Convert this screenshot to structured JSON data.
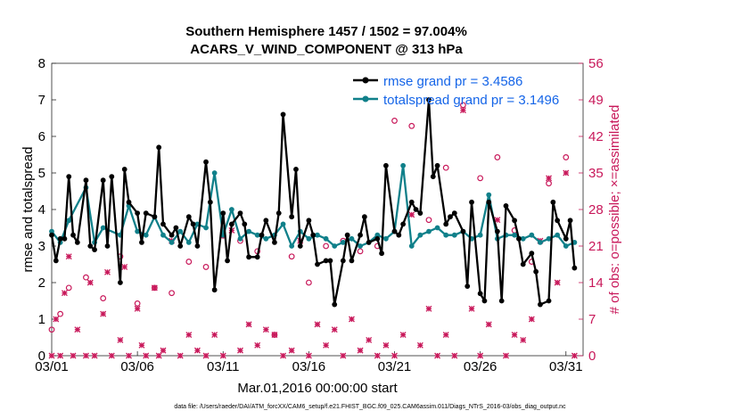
{
  "chart_data": {
    "type": "line",
    "title_line1": "Southern Hemisphere 1457 / 1502 = 97.004%",
    "title_line2": "ACARS_V_WIND_COMPONENT @ 313 hPa",
    "ylabel": "rmse and totalspread",
    "ylabel_right": "# of obs: o=possible; ×=assimilated",
    "xlabel": "Mar.01,2016 00:00:00 start",
    "footnote": "data file: /Users/raeder/DAI/ATM_forcXX/CAM6_setup/f.e21.FHIST_BGC.f09_025.CAM6assim.011/Diags_NTrS_2016-03/obs_diag_output.nc",
    "xlim": [
      1,
      32
    ],
    "ylim": [
      0,
      8
    ],
    "ylim_right": [
      0,
      56
    ],
    "x_ticks": [
      1,
      6,
      11,
      16,
      21,
      26,
      31
    ],
    "x_tick_labels": [
      "03/01",
      "03/06",
      "03/11",
      "03/16",
      "03/21",
      "03/26",
      "03/31"
    ],
    "y_ticks": [
      0,
      1,
      2,
      3,
      4,
      5,
      6,
      7,
      8
    ],
    "y_tick_labels": [
      "0",
      "1",
      "2",
      "3",
      "4",
      "5",
      "6",
      "7",
      "8"
    ],
    "y_right_ticks": [
      0,
      7,
      14,
      21,
      28,
      35,
      42,
      49,
      56
    ],
    "y_right_tick_labels": [
      "0",
      "7",
      "14",
      "21",
      "28",
      "35",
      "42",
      "49",
      "56"
    ],
    "legend_position": "top-right",
    "series": [
      {
        "name": "rmse grand pr = 3.4586",
        "color": "#000000",
        "x": [
          1.0,
          1.25,
          1.5,
          1.75,
          2.0,
          2.25,
          2.5,
          3.0,
          3.25,
          3.5,
          4.0,
          4.25,
          4.5,
          5.0,
          5.25,
          5.5,
          6.0,
          6.25,
          6.5,
          7.0,
          7.25,
          7.5,
          8.0,
          8.25,
          8.5,
          9.0,
          9.25,
          9.5,
          10.0,
          10.25,
          10.5,
          11.0,
          11.25,
          11.5,
          12.0,
          12.25,
          12.5,
          13.0,
          13.25,
          13.5,
          14.0,
          14.25,
          14.5,
          15.0,
          15.25,
          15.5,
          16.0,
          16.25,
          16.5,
          17.0,
          17.25,
          17.5,
          18.0,
          18.25,
          18.5,
          19.0,
          19.25,
          19.5,
          20.0,
          20.25,
          20.5,
          21.0,
          21.25,
          21.5,
          22.0,
          22.25,
          22.5,
          23.0,
          23.25,
          23.5,
          24.0,
          24.25,
          24.5,
          25.0,
          25.25,
          25.5,
          26.0,
          26.25,
          26.5,
          27.0,
          27.25,
          27.5,
          28.0,
          28.25,
          28.5,
          29.0,
          29.25,
          29.5,
          30.0,
          30.25,
          30.5,
          31.0,
          31.25,
          31.5
        ],
        "values": [
          3.3,
          2.6,
          3.2,
          3.2,
          4.9,
          3.3,
          3.1,
          4.8,
          3.0,
          2.9,
          4.8,
          3.0,
          4.9,
          2.0,
          5.1,
          4.2,
          3.9,
          3.1,
          3.9,
          3.8,
          5.7,
          3.6,
          3.3,
          3.5,
          3.0,
          3.8,
          3.6,
          3.0,
          5.3,
          4.2,
          1.8,
          3.9,
          2.6,
          3.6,
          3.9,
          3.6,
          2.7,
          2.7,
          3.3,
          3.7,
          3.1,
          3.9,
          6.6,
          3.8,
          5.1,
          3.0,
          3.7,
          3.3,
          2.5,
          2.6,
          2.6,
          1.4,
          2.6,
          3.3,
          2.6,
          3.3,
          3.8,
          3.1,
          3.2,
          2.8,
          5.2,
          3.4,
          3.3,
          3.6,
          4.2,
          4.0,
          3.9,
          7.0,
          4.9,
          5.2,
          3.6,
          3.8,
          3.9,
          3.4,
          1.9,
          4.2,
          1.7,
          1.5,
          4.2,
          3.4,
          1.5,
          4.1,
          3.7,
          3.2,
          2.5,
          2.8,
          2.3,
          1.4,
          1.5,
          4.2,
          3.7,
          3.2,
          3.7,
          2.4
        ]
      },
      {
        "name": "totalspread grand pr = 3.1496",
        "color": "#10808a",
        "x": [
          1.0,
          1.5,
          2.0,
          3.0,
          3.5,
          4.0,
          5.0,
          5.5,
          6.0,
          6.5,
          7.0,
          7.5,
          8.0,
          8.5,
          9.0,
          9.5,
          10.0,
          10.5,
          11.0,
          11.5,
          12.0,
          12.5,
          13.0,
          13.5,
          14.0,
          14.5,
          15.0,
          15.5,
          16.0,
          16.5,
          17.0,
          17.5,
          18.0,
          18.5,
          19.0,
          19.5,
          20.0,
          20.5,
          21.0,
          21.5,
          22.0,
          22.5,
          23.0,
          23.5,
          24.0,
          24.5,
          25.0,
          25.5,
          26.0,
          26.5,
          27.0,
          27.5,
          28.0,
          28.5,
          29.0,
          29.5,
          30.0,
          30.5,
          31.0,
          31.5
        ],
        "values": [
          3.4,
          3.1,
          3.7,
          4.6,
          3.1,
          3.5,
          3.3,
          4.1,
          3.4,
          3.3,
          3.8,
          3.3,
          3.1,
          3.4,
          3.1,
          3.6,
          3.5,
          5.0,
          3.3,
          4.0,
          3.2,
          3.4,
          3.3,
          3.2,
          3.3,
          3.6,
          3.0,
          3.4,
          3.2,
          3.3,
          3.2,
          3.0,
          3.1,
          3.2,
          3.0,
          3.1,
          3.3,
          3.2,
          3.4,
          5.2,
          3.0,
          3.3,
          3.4,
          3.5,
          3.3,
          3.3,
          3.4,
          3.2,
          3.3,
          4.4,
          3.2,
          3.3,
          3.3,
          3.2,
          3.3,
          3.1,
          3.2,
          3.3,
          3.0,
          3.1
        ]
      },
      {
        "name": "possible",
        "color": "#c8185a",
        "marker": "circle",
        "x": [
          1.0,
          1.5,
          2.0,
          3.0,
          4.0,
          5.0,
          6.0,
          7.0,
          8.0,
          9.0,
          10.0,
          11.0,
          12.0,
          13.0,
          14.0,
          15.0,
          16.0,
          17.0,
          18.0,
          19.0,
          20.0,
          21.0,
          22.0,
          23.0,
          24.0,
          25.0,
          26.0,
          27.0,
          28.0,
          29.0,
          30.0,
          31.0
        ],
        "values": [
          5,
          8,
          13,
          15,
          11,
          19,
          10,
          13,
          12,
          18,
          17,
          23,
          22,
          20,
          4,
          19,
          14,
          21,
          22,
          20,
          21,
          45,
          44,
          26,
          36,
          48,
          34,
          38,
          24,
          18,
          33,
          38
        ]
      },
      {
        "name": "assimilated",
        "color": "#c8185a",
        "marker": "x",
        "x": [
          1.0,
          1.25,
          1.5,
          1.75,
          2.0,
          2.25,
          2.5,
          3.0,
          3.25,
          3.5,
          4.0,
          4.25,
          4.5,
          5.0,
          5.25,
          5.5,
          6.0,
          6.25,
          6.5,
          7.0,
          7.25,
          7.5,
          8.0,
          8.5,
          9.0,
          9.5,
          10.0,
          10.5,
          11.0,
          11.5,
          12.0,
          12.5,
          13.0,
          13.5,
          14.0,
          14.5,
          15.0,
          15.5,
          16.0,
          16.5,
          17.0,
          17.5,
          18.0,
          18.5,
          19.0,
          19.5,
          20.0,
          20.5,
          21.0,
          21.5,
          22.0,
          22.5,
          23.0,
          23.5,
          24.0,
          24.5,
          25.0,
          25.5,
          26.0,
          26.5,
          27.0,
          27.5,
          28.0,
          28.5,
          29.0,
          29.5,
          30.0,
          30.5,
          31.0,
          31.5
        ],
        "values": [
          0,
          7,
          0,
          12,
          19,
          0,
          5,
          0,
          14,
          0,
          8,
          16,
          0,
          3,
          17,
          0,
          9,
          2,
          0,
          13,
          0,
          1,
          22,
          0,
          4,
          1,
          0,
          4,
          0,
          24,
          1,
          6,
          2,
          5,
          4,
          0,
          1,
          22,
          0,
          6,
          2,
          5,
          0,
          7,
          1,
          3,
          0,
          2,
          0,
          4,
          27,
          2,
          9,
          0,
          4,
          0,
          47,
          9,
          0,
          6,
          26,
          0,
          4,
          3,
          7,
          22,
          34,
          14,
          35,
          0
        ]
      }
    ]
  }
}
